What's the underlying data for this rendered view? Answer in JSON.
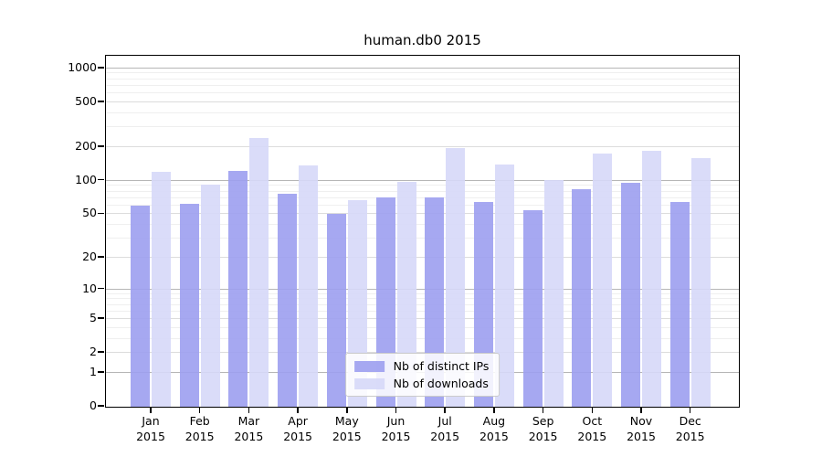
{
  "figure": {
    "background": "#ffffff"
  },
  "chart_data": {
    "type": "bar",
    "title": "human.db0 2015",
    "categories": [
      "Jan 2015",
      "Feb 2015",
      "Mar 2015",
      "Apr 2015",
      "May 2015",
      "Jun 2015",
      "Jul 2015",
      "Aug 2015",
      "Sep 2015",
      "Oct 2015",
      "Nov 2015",
      "Dec 2015"
    ],
    "month_labels": [
      "Jan",
      "Feb",
      "Mar",
      "Apr",
      "May",
      "Jun",
      "Jul",
      "Aug",
      "Sep",
      "Oct",
      "Nov",
      "Dec"
    ],
    "year_label": "2015",
    "series": [
      {
        "name": "Nb of distinct IPs",
        "color": "#9c9ff0",
        "values": [
          60,
          62,
          123,
          77,
          50,
          71,
          71,
          65,
          54,
          84,
          95,
          65
        ]
      },
      {
        "name": "Nb of downloads",
        "color": "#d6d8f8",
        "values": [
          120,
          93,
          240,
          136,
          67,
          97,
          195,
          139,
          102,
          175,
          185,
          160
        ]
      }
    ],
    "y_axis": {
      "scale": "log1p",
      "ticks": [
        0,
        1,
        2,
        5,
        10,
        20,
        50,
        100,
        200,
        500,
        1000
      ],
      "max_value": 1270
    },
    "grid": true,
    "grid_colors": {
      "major": "#b6b6b6",
      "mid": "#dcdcdc",
      "minor": "#efefef"
    },
    "legend": {
      "position": "lower center"
    }
  }
}
